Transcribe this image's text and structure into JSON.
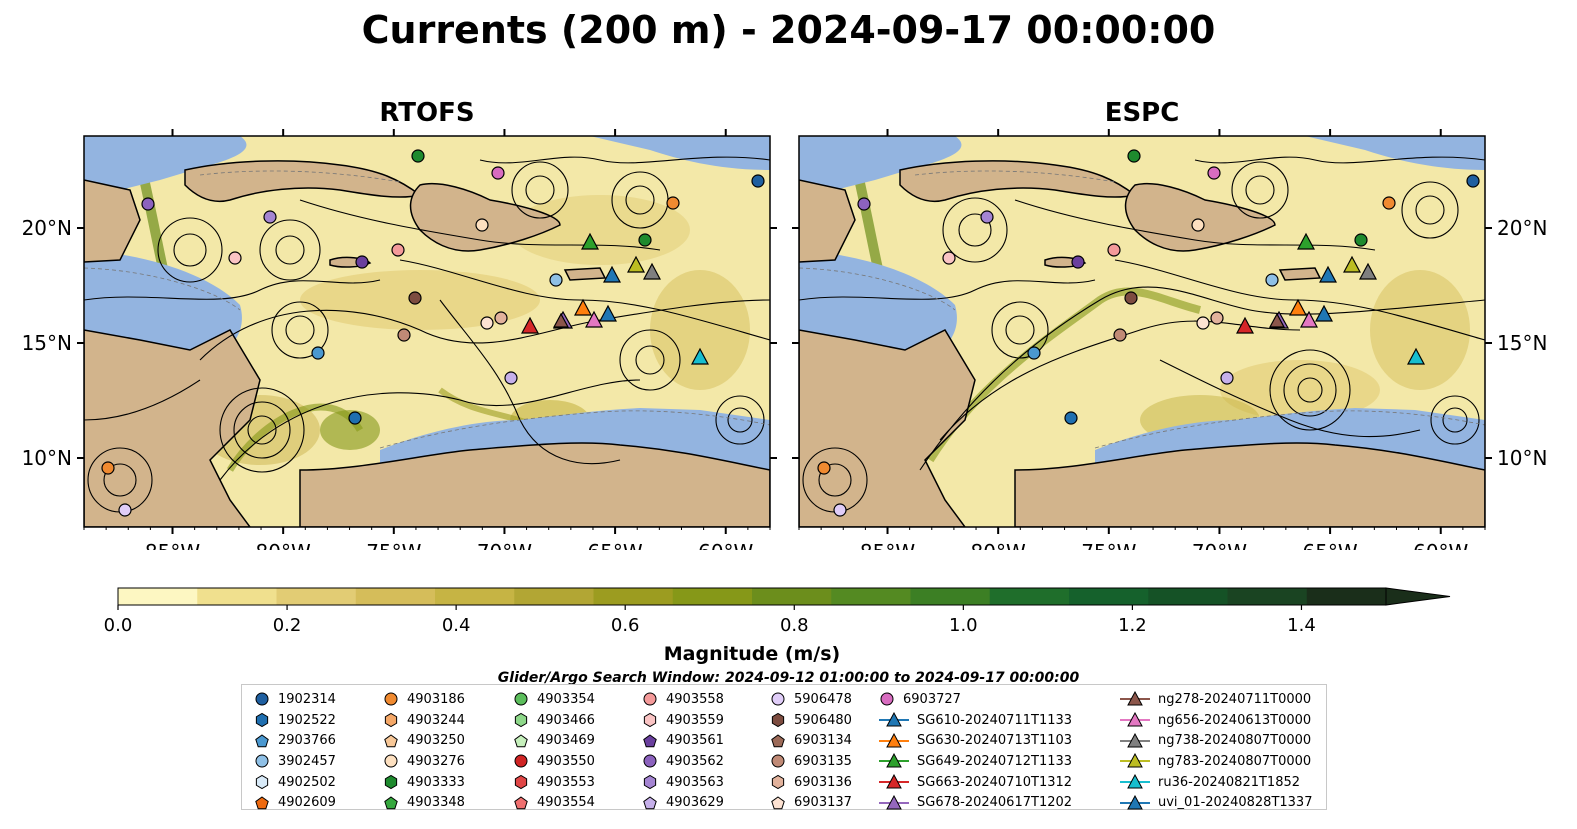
{
  "title": "Currents (200 m) - 2024-09-17 00:00:00",
  "search_window": "Glider/Argo Search Window: 2024-09-12 01:00:00 to 2024-09-17 00:00:00",
  "chart_data": [
    {
      "type": "heatmap",
      "title": "RTOFS",
      "lon_range": [
        -89,
        -58
      ],
      "lat_range": [
        7,
        24
      ],
      "xticks": [
        {
          "v": -85,
          "label": "85°W"
        },
        {
          "v": -80,
          "label": "80°W"
        },
        {
          "v": -75,
          "label": "75°W"
        },
        {
          "v": -70,
          "label": "70°W"
        },
        {
          "v": -65,
          "label": "65°W"
        },
        {
          "v": -60,
          "label": "60°W"
        }
      ],
      "yticks": [
        {
          "v": 10,
          "label": "10°N"
        },
        {
          "v": 15,
          "label": "15°N"
        },
        {
          "v": 20,
          "label": "20°N"
        }
      ]
    },
    {
      "type": "heatmap",
      "title": "ESPC",
      "lon_range": [
        -89,
        -58
      ],
      "lat_range": [
        7,
        24
      ],
      "xticks": [
        {
          "v": -85,
          "label": "85°W"
        },
        {
          "v": -80,
          "label": "80°W"
        },
        {
          "v": -75,
          "label": "75°W"
        },
        {
          "v": -70,
          "label": "70°W"
        },
        {
          "v": -65,
          "label": "65°W"
        },
        {
          "v": -60,
          "label": "60°W"
        }
      ],
      "yticks": [
        {
          "v": 10,
          "label": "10°N"
        },
        {
          "v": 15,
          "label": "15°N"
        },
        {
          "v": 20,
          "label": "20°N"
        }
      ]
    }
  ],
  "colorbar": {
    "label": "Magnitude (m/s)",
    "min": 0.0,
    "max": 1.5,
    "ticks": [
      {
        "v": 0.0,
        "label": "0.0"
      },
      {
        "v": 0.2,
        "label": "0.2"
      },
      {
        "v": 0.4,
        "label": "0.4"
      },
      {
        "v": 0.6,
        "label": "0.6"
      },
      {
        "v": 0.8,
        "label": "0.8"
      },
      {
        "v": 1.0,
        "label": "1.0"
      },
      {
        "v": 1.2,
        "label": "1.2"
      },
      {
        "v": 1.4,
        "label": "1.4"
      }
    ],
    "colors": [
      "#fdf7c2",
      "#f0e08e",
      "#e2cc74",
      "#d5bd5a",
      "#c6b444",
      "#b2a634",
      "#9c9c20",
      "#869818",
      "#6c8e1c",
      "#548a22",
      "#3c7f24",
      "#1f6e2b",
      "#15612c",
      "#155226",
      "#1a4422",
      "#1a2e1a"
    ]
  },
  "legend": [
    {
      "label": "1902314",
      "color": "#1f5fa0",
      "marker": "circle"
    },
    {
      "label": "1902522",
      "color": "#1f6fb0",
      "marker": "hexagon"
    },
    {
      "label": "2903766",
      "color": "#4a98d0",
      "marker": "pentagon"
    },
    {
      "label": "3902457",
      "color": "#8fc0e6",
      "marker": "circle"
    },
    {
      "label": "4902502",
      "color": "#d8eaf8",
      "marker": "hexagon"
    },
    {
      "label": "4902609",
      "color": "#ee6a10",
      "marker": "pentagon"
    },
    {
      "label": "4903186",
      "color": "#f08a30",
      "marker": "circle"
    },
    {
      "label": "4903244",
      "color": "#f5a868",
      "marker": "hexagon"
    },
    {
      "label": "4903250",
      "color": "#f8c898",
      "marker": "pentagon"
    },
    {
      "label": "4903276",
      "color": "#fde0c0",
      "marker": "circle"
    },
    {
      "label": "4903333",
      "color": "#1e8a2e",
      "marker": "hexagon"
    },
    {
      "label": "4903348",
      "color": "#36a83e",
      "marker": "pentagon"
    },
    {
      "label": "4903354",
      "color": "#5cbe5c",
      "marker": "circle"
    },
    {
      "label": "4903466",
      "color": "#8ed88a",
      "marker": "hexagon"
    },
    {
      "label": "4903469",
      "color": "#c6f0bc",
      "marker": "pentagon"
    },
    {
      "label": "4903550",
      "color": "#d02424",
      "marker": "circle"
    },
    {
      "label": "4903553",
      "color": "#e04646",
      "marker": "hexagon"
    },
    {
      "label": "4903554",
      "color": "#f07070",
      "marker": "pentagon"
    },
    {
      "label": "4903558",
      "color": "#f49a9a",
      "marker": "circle"
    },
    {
      "label": "4903559",
      "color": "#fac4c4",
      "marker": "hexagon"
    },
    {
      "label": "4903561",
      "color": "#6a3f9e",
      "marker": "pentagon"
    },
    {
      "label": "4903562",
      "color": "#8c62be",
      "marker": "circle"
    },
    {
      "label": "4903563",
      "color": "#a484d2",
      "marker": "hexagon"
    },
    {
      "label": "4903629",
      "color": "#c6b0ea",
      "marker": "pentagon"
    },
    {
      "label": "5906478",
      "color": "#e0cdf8",
      "marker": "circle"
    },
    {
      "label": "5906480",
      "color": "#7d4c40",
      "marker": "hexagon"
    },
    {
      "label": "6903134",
      "color": "#9c6a58",
      "marker": "pentagon"
    },
    {
      "label": "6903135",
      "color": "#c08a76",
      "marker": "circle"
    },
    {
      "label": "6903136",
      "color": "#e2b29c",
      "marker": "hexagon"
    },
    {
      "label": "6903137",
      "color": "#fde2d2",
      "marker": "pentagon"
    },
    {
      "label": "6903727",
      "color": "#d86cc0",
      "marker": "circle"
    },
    {
      "label": "SG610-20240711T1133",
      "color": "#1f77b4",
      "marker": "triangle"
    },
    {
      "label": "SG630-20240713T1103",
      "color": "#ff7f0e",
      "marker": "triangle"
    },
    {
      "label": "SG649-20240712T1133",
      "color": "#2ca02c",
      "marker": "triangle"
    },
    {
      "label": "SG663-20240710T1312",
      "color": "#d62728",
      "marker": "triangle"
    },
    {
      "label": "SG678-20240617T1202",
      "color": "#9467bd",
      "marker": "triangle"
    },
    {
      "label": "ng278-20240711T0000",
      "color": "#8c564b",
      "marker": "triangle"
    },
    {
      "label": "ng656-20240613T0000",
      "color": "#e377c2",
      "marker": "triangle"
    },
    {
      "label": "ng738-20240807T0000",
      "color": "#7f7f7f",
      "marker": "triangle"
    },
    {
      "label": "ng783-20240807T0000",
      "color": "#bcbd22",
      "marker": "triangle"
    },
    {
      "label": "ru36-20240821T1852",
      "color": "#17becf",
      "marker": "triangle"
    },
    {
      "label": "uvi_01-20240828T1337",
      "color": "#1f77b4",
      "marker": "triangle"
    }
  ],
  "map_colors": {
    "ocean": "#f3e8a8",
    "land": "#d2b48c",
    "shelf": "#93b4e0"
  }
}
